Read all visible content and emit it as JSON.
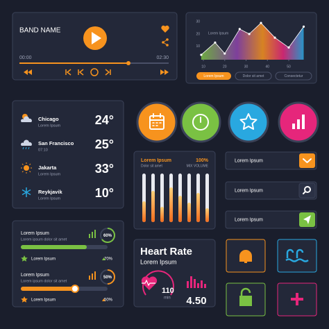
{
  "player": {
    "title": "BAND NAME",
    "time_start": "00:00",
    "time_end": "02:30"
  },
  "area_chart": {
    "label": "Lorem Ipsum",
    "x": [
      9,
      15.5,
      20,
      27,
      31.5,
      37,
      43.5,
      50,
      57
    ],
    "values": [
      3,
      13,
      4,
      24,
      20,
      29,
      17,
      9,
      26
    ],
    "xlim": [
      5,
      60
    ],
    "ylim": [
      -1,
      33
    ],
    "xticks": [
      10,
      20,
      30,
      40,
      50
    ],
    "yticks": [
      10,
      20,
      30
    ],
    "buttons": [
      "Lorem Ipsum",
      "Dolor sit amet",
      "Consectetur"
    ]
  },
  "weather": [
    {
      "city": "Chicago",
      "sub": "Lorem Ipsum",
      "temp": "24°"
    },
    {
      "city": "San Francisco",
      "sub": "07:10",
      "temp": "25°"
    },
    {
      "city": "Jakarta",
      "sub": "Lorem Ipsum",
      "temp": "33°"
    },
    {
      "city": "Reykjavik",
      "sub": "Lorem Ipsum",
      "temp": "10°"
    }
  ],
  "mixer": {
    "title": "Lorem Ipsum",
    "value": "100%",
    "sub": "Dolor sit amet",
    "caption": "MIX VOLUME"
  },
  "inputs": [
    "Lorem Ipsum",
    "Lorem Ipsum",
    "Lorem Ipsum"
  ],
  "progress": [
    {
      "title": "Lorem Ipsum",
      "sub": "Lorem ipsum dolor sit amet",
      "ring": "60%",
      "item": "Lorem Ipsum",
      "change": "70%"
    },
    {
      "title": "Lorem Ipsum",
      "sub": "Lorem ipsum dolor sit amet",
      "ring": "50%",
      "item": "Lorem Ipsum",
      "change": "50%"
    }
  ],
  "heart": {
    "title": "Heart Rate",
    "subtitle": "Lorem Ipsum",
    "bpm": "110",
    "unit": "min",
    "value": "4.50"
  }
}
